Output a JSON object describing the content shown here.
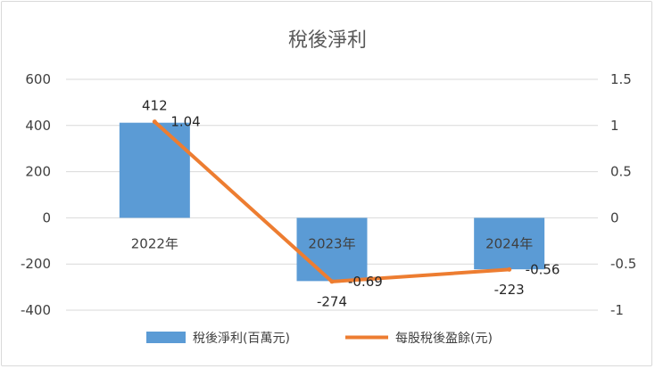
{
  "chart_data": {
    "type": "bar",
    "title": "稅後淨利",
    "categories": [
      "2022年",
      "2023年",
      "2024年"
    ],
    "series": [
      {
        "name": "稅後淨利(百萬元)",
        "type": "bar",
        "axis": "left",
        "values": [
          412,
          -274,
          -223
        ],
        "labels": [
          "412",
          "-274",
          "-223"
        ],
        "color": "#5b9bd5"
      },
      {
        "name": "每股稅後盈餘(元)",
        "type": "line",
        "axis": "right",
        "values": [
          1.04,
          -0.69,
          -0.56
        ],
        "labels": [
          "1.04",
          "-0.69",
          "-0.56"
        ],
        "color": "#ed7d31"
      }
    ],
    "y_left": {
      "min": -400,
      "max": 600,
      "ticks": [
        "600",
        "400",
        "200",
        "0",
        "-200",
        "-400"
      ]
    },
    "y_right": {
      "min": -1,
      "max": 1.5,
      "ticks": [
        "1.5",
        "1",
        "0.5",
        "0",
        "-0.5",
        "-1"
      ]
    },
    "grid": true,
    "legend": "bottom"
  }
}
